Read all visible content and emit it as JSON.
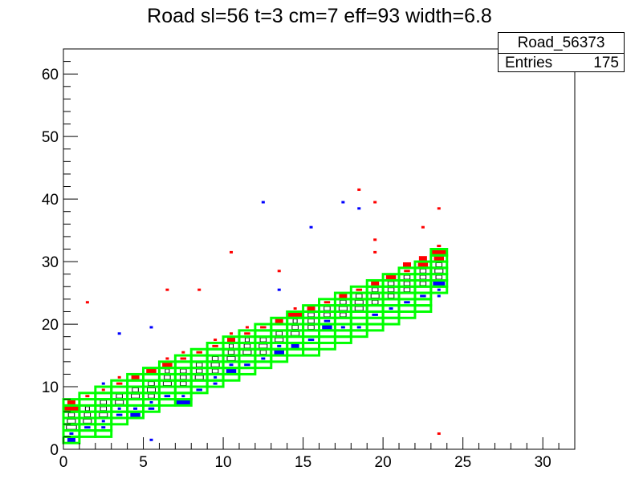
{
  "chart_data": {
    "type": "heatmap",
    "title": "Road sl=56 t=3 cm=7 eff=93 width=6.8",
    "xlim": [
      0,
      32
    ],
    "ylim": [
      0,
      64
    ],
    "x_ticks": [
      "0",
      "5",
      "10",
      "15",
      "20",
      "25",
      "30"
    ],
    "y_ticks": [
      "0",
      "10",
      "20",
      "30",
      "40",
      "50",
      "60"
    ],
    "stats": {
      "name": "Road_56373",
      "entries_label": "Entries",
      "entries_value": "175"
    },
    "road_boxes": [
      [
        0,
        1
      ],
      [
        0,
        2
      ],
      [
        0,
        3
      ],
      [
        0,
        4
      ],
      [
        0,
        5
      ],
      [
        0,
        6
      ],
      [
        0,
        7
      ],
      [
        1,
        2
      ],
      [
        1,
        3
      ],
      [
        1,
        4
      ],
      [
        1,
        5
      ],
      [
        1,
        6
      ],
      [
        1,
        7
      ],
      [
        1,
        8
      ],
      [
        2,
        2
      ],
      [
        2,
        3
      ],
      [
        2,
        4
      ],
      [
        2,
        5
      ],
      [
        2,
        6
      ],
      [
        2,
        7
      ],
      [
        2,
        8
      ],
      [
        2,
        9
      ],
      [
        3,
        4
      ],
      [
        3,
        5
      ],
      [
        3,
        6
      ],
      [
        3,
        7
      ],
      [
        3,
        8
      ],
      [
        3,
        9
      ],
      [
        3,
        10
      ],
      [
        4,
        5
      ],
      [
        4,
        6
      ],
      [
        4,
        7
      ],
      [
        4,
        8
      ],
      [
        4,
        9
      ],
      [
        4,
        10
      ],
      [
        4,
        11
      ],
      [
        5,
        6
      ],
      [
        5,
        7
      ],
      [
        5,
        8
      ],
      [
        5,
        9
      ],
      [
        5,
        10
      ],
      [
        5,
        11
      ],
      [
        5,
        12
      ],
      [
        6,
        7
      ],
      [
        6,
        8
      ],
      [
        6,
        9
      ],
      [
        6,
        10
      ],
      [
        6,
        11
      ],
      [
        6,
        12
      ],
      [
        6,
        13
      ],
      [
        7,
        7
      ],
      [
        7,
        8
      ],
      [
        7,
        9
      ],
      [
        7,
        10
      ],
      [
        7,
        11
      ],
      [
        7,
        12
      ],
      [
        7,
        13
      ],
      [
        7,
        14
      ],
      [
        8,
        9
      ],
      [
        8,
        10
      ],
      [
        8,
        11
      ],
      [
        8,
        12
      ],
      [
        8,
        13
      ],
      [
        8,
        14
      ],
      [
        8,
        15
      ],
      [
        9,
        10
      ],
      [
        9,
        11
      ],
      [
        9,
        12
      ],
      [
        9,
        13
      ],
      [
        9,
        14
      ],
      [
        9,
        15
      ],
      [
        9,
        16
      ],
      [
        10,
        11
      ],
      [
        10,
        12
      ],
      [
        10,
        13
      ],
      [
        10,
        14
      ],
      [
        10,
        15
      ],
      [
        10,
        16
      ],
      [
        10,
        17
      ],
      [
        11,
        12
      ],
      [
        11,
        13
      ],
      [
        11,
        14
      ],
      [
        11,
        15
      ],
      [
        11,
        16
      ],
      [
        11,
        17
      ],
      [
        11,
        18
      ],
      [
        12,
        13
      ],
      [
        12,
        14
      ],
      [
        12,
        15
      ],
      [
        12,
        16
      ],
      [
        12,
        17
      ],
      [
        12,
        18
      ],
      [
        12,
        19
      ],
      [
        13,
        14
      ],
      [
        13,
        15
      ],
      [
        13,
        16
      ],
      [
        13,
        17
      ],
      [
        13,
        18
      ],
      [
        13,
        19
      ],
      [
        13,
        20
      ],
      [
        14,
        15
      ],
      [
        14,
        16
      ],
      [
        14,
        17
      ],
      [
        14,
        18
      ],
      [
        14,
        19
      ],
      [
        14,
        20
      ],
      [
        14,
        21
      ],
      [
        15,
        15
      ],
      [
        15,
        16
      ],
      [
        15,
        17
      ],
      [
        15,
        18
      ],
      [
        15,
        19
      ],
      [
        15,
        20
      ],
      [
        15,
        21
      ],
      [
        15,
        22
      ],
      [
        16,
        16
      ],
      [
        16,
        17
      ],
      [
        16,
        18
      ],
      [
        16,
        19
      ],
      [
        16,
        20
      ],
      [
        16,
        21
      ],
      [
        16,
        22
      ],
      [
        16,
        23
      ],
      [
        17,
        17
      ],
      [
        17,
        18
      ],
      [
        17,
        19
      ],
      [
        17,
        20
      ],
      [
        17,
        21
      ],
      [
        17,
        22
      ],
      [
        17,
        23
      ],
      [
        17,
        24
      ],
      [
        18,
        18
      ],
      [
        18,
        19
      ],
      [
        18,
        20
      ],
      [
        18,
        21
      ],
      [
        18,
        22
      ],
      [
        18,
        23
      ],
      [
        18,
        24
      ],
      [
        18,
        25
      ],
      [
        19,
        19
      ],
      [
        19,
        20
      ],
      [
        19,
        21
      ],
      [
        19,
        22
      ],
      [
        19,
        23
      ],
      [
        19,
        24
      ],
      [
        19,
        25
      ],
      [
        19,
        26
      ],
      [
        20,
        20
      ],
      [
        20,
        21
      ],
      [
        20,
        22
      ],
      [
        20,
        23
      ],
      [
        20,
        24
      ],
      [
        20,
        25
      ],
      [
        20,
        26
      ],
      [
        20,
        27
      ],
      [
        21,
        21
      ],
      [
        21,
        22
      ],
      [
        21,
        23
      ],
      [
        21,
        24
      ],
      [
        21,
        25
      ],
      [
        21,
        26
      ],
      [
        21,
        27
      ],
      [
        21,
        28
      ],
      [
        22,
        22
      ],
      [
        22,
        23
      ],
      [
        22,
        24
      ],
      [
        22,
        25
      ],
      [
        22,
        26
      ],
      [
        22,
        27
      ],
      [
        22,
        28
      ],
      [
        22,
        29
      ],
      [
        23,
        25
      ],
      [
        23,
        26
      ],
      [
        23,
        27
      ],
      [
        23,
        28
      ],
      [
        23,
        29
      ],
      [
        23,
        30
      ],
      [
        23,
        31
      ]
    ],
    "series": [
      {
        "name": "red",
        "color": "#ff0000",
        "points": [
          [
            0,
            6,
            8
          ],
          [
            0,
            7,
            4
          ],
          [
            1,
            8,
            2
          ],
          [
            2,
            9,
            1
          ],
          [
            3,
            10,
            3
          ],
          [
            3,
            11,
            1
          ],
          [
            4,
            11,
            4
          ],
          [
            5,
            12,
            5
          ],
          [
            6,
            13,
            5
          ],
          [
            6,
            14,
            1
          ],
          [
            7,
            14,
            3
          ],
          [
            7,
            15,
            1
          ],
          [
            8,
            15,
            3
          ],
          [
            9,
            16,
            3
          ],
          [
            9,
            17,
            1
          ],
          [
            10,
            17,
            4
          ],
          [
            10,
            18,
            1
          ],
          [
            11,
            18,
            3
          ],
          [
            11,
            19,
            1
          ],
          [
            12,
            19,
            3
          ],
          [
            13,
            20,
            4
          ],
          [
            14,
            21,
            7
          ],
          [
            14,
            22,
            1
          ],
          [
            15,
            22,
            4
          ],
          [
            16,
            23,
            3
          ],
          [
            17,
            24,
            4
          ],
          [
            18,
            25,
            3
          ],
          [
            19,
            26,
            4
          ],
          [
            20,
            27,
            5
          ],
          [
            21,
            28,
            3
          ],
          [
            21,
            29,
            4
          ],
          [
            22,
            29,
            5
          ],
          [
            22,
            30,
            4
          ],
          [
            23,
            30,
            5
          ],
          [
            23,
            31,
            7
          ],
          [
            23,
            32,
            2
          ],
          [
            1,
            23,
            1
          ],
          [
            6,
            25,
            1
          ],
          [
            8,
            25,
            1
          ],
          [
            10,
            31,
            1
          ],
          [
            13,
            28,
            1
          ],
          [
            18,
            41,
            1
          ],
          [
            19,
            39,
            1
          ],
          [
            19,
            31,
            1
          ],
          [
            19,
            33,
            1
          ],
          [
            22,
            35,
            1
          ],
          [
            23,
            38,
            1
          ],
          [
            23,
            2,
            1
          ]
        ]
      },
      {
        "name": "blue",
        "color": "#0000ff",
        "points": [
          [
            0,
            1,
            4
          ],
          [
            0,
            2,
            2
          ],
          [
            1,
            3,
            3
          ],
          [
            2,
            3,
            2
          ],
          [
            2,
            4,
            1
          ],
          [
            3,
            5,
            3
          ],
          [
            3,
            6,
            1
          ],
          [
            4,
            5,
            5
          ],
          [
            4,
            6,
            2
          ],
          [
            5,
            6,
            3
          ],
          [
            5,
            7,
            1
          ],
          [
            6,
            8,
            3
          ],
          [
            7,
            7,
            7
          ],
          [
            7,
            8,
            1
          ],
          [
            8,
            9,
            3
          ],
          [
            9,
            10,
            2
          ],
          [
            9,
            11,
            1
          ],
          [
            10,
            12,
            5
          ],
          [
            10,
            13,
            2
          ],
          [
            11,
            13,
            3
          ],
          [
            12,
            14,
            2
          ],
          [
            13,
            15,
            5
          ],
          [
            13,
            16,
            2
          ],
          [
            14,
            16,
            4
          ],
          [
            15,
            17,
            3
          ],
          [
            16,
            19,
            5
          ],
          [
            16,
            20,
            3
          ],
          [
            17,
            19,
            2
          ],
          [
            18,
            19,
            2
          ],
          [
            19,
            21,
            3
          ],
          [
            20,
            22,
            2
          ],
          [
            21,
            23,
            3
          ],
          [
            22,
            24,
            3
          ],
          [
            23,
            26,
            6
          ],
          [
            23,
            25,
            1
          ],
          [
            3,
            18,
            1
          ],
          [
            5,
            19,
            1
          ],
          [
            5,
            1,
            1
          ],
          [
            12,
            39,
            1
          ],
          [
            13,
            25,
            1
          ],
          [
            15,
            35,
            1
          ],
          [
            17,
            39,
            1
          ],
          [
            18,
            38,
            1
          ],
          [
            2,
            10,
            1
          ],
          [
            23,
            24,
            1
          ]
        ]
      },
      {
        "name": "hollow",
        "color": "#000000",
        "points": [
          [
            0,
            3,
            5
          ],
          [
            0,
            4,
            4
          ],
          [
            0,
            5,
            3
          ],
          [
            1,
            4,
            4
          ],
          [
            1,
            5,
            3
          ],
          [
            1,
            6,
            2
          ],
          [
            2,
            5,
            4
          ],
          [
            2,
            6,
            3
          ],
          [
            2,
            7,
            3
          ],
          [
            3,
            7,
            4
          ],
          [
            3,
            8,
            3
          ],
          [
            4,
            8,
            4
          ],
          [
            4,
            9,
            3
          ],
          [
            5,
            8,
            3
          ],
          [
            5,
            9,
            4
          ],
          [
            5,
            10,
            3
          ],
          [
            6,
            10,
            4
          ],
          [
            6,
            11,
            3
          ],
          [
            6,
            12,
            2
          ],
          [
            7,
            10,
            3
          ],
          [
            7,
            11,
            3
          ],
          [
            7,
            12,
            3
          ],
          [
            8,
            11,
            4
          ],
          [
            8,
            12,
            3
          ],
          [
            8,
            13,
            3
          ],
          [
            9,
            12,
            3
          ],
          [
            9,
            13,
            4
          ],
          [
            9,
            14,
            3
          ],
          [
            10,
            14,
            4
          ],
          [
            10,
            15,
            3
          ],
          [
            10,
            16,
            2
          ],
          [
            11,
            15,
            4
          ],
          [
            11,
            16,
            3
          ],
          [
            11,
            17,
            2
          ],
          [
            12,
            15,
            3
          ],
          [
            12,
            16,
            4
          ],
          [
            12,
            17,
            3
          ],
          [
            13,
            17,
            4
          ],
          [
            13,
            18,
            3
          ],
          [
            14,
            18,
            4
          ],
          [
            14,
            19,
            3
          ],
          [
            14,
            20,
            2
          ],
          [
            15,
            19,
            3
          ],
          [
            15,
            20,
            3
          ],
          [
            15,
            21,
            3
          ],
          [
            16,
            21,
            3
          ],
          [
            16,
            22,
            3
          ],
          [
            17,
            21,
            3
          ],
          [
            17,
            22,
            4
          ],
          [
            17,
            23,
            3
          ],
          [
            18,
            22,
            4
          ],
          [
            18,
            23,
            4
          ],
          [
            18,
            24,
            3
          ],
          [
            19,
            23,
            3
          ],
          [
            19,
            24,
            4
          ],
          [
            19,
            25,
            3
          ],
          [
            20,
            24,
            3
          ],
          [
            20,
            25,
            3
          ],
          [
            20,
            26,
            3
          ],
          [
            21,
            25,
            3
          ],
          [
            21,
            26,
            3
          ],
          [
            21,
            27,
            3
          ],
          [
            22,
            26,
            3
          ],
          [
            22,
            27,
            3
          ],
          [
            22,
            28,
            3
          ],
          [
            23,
            27,
            3
          ],
          [
            23,
            28,
            4
          ],
          [
            23,
            29,
            3
          ]
        ]
      }
    ]
  }
}
